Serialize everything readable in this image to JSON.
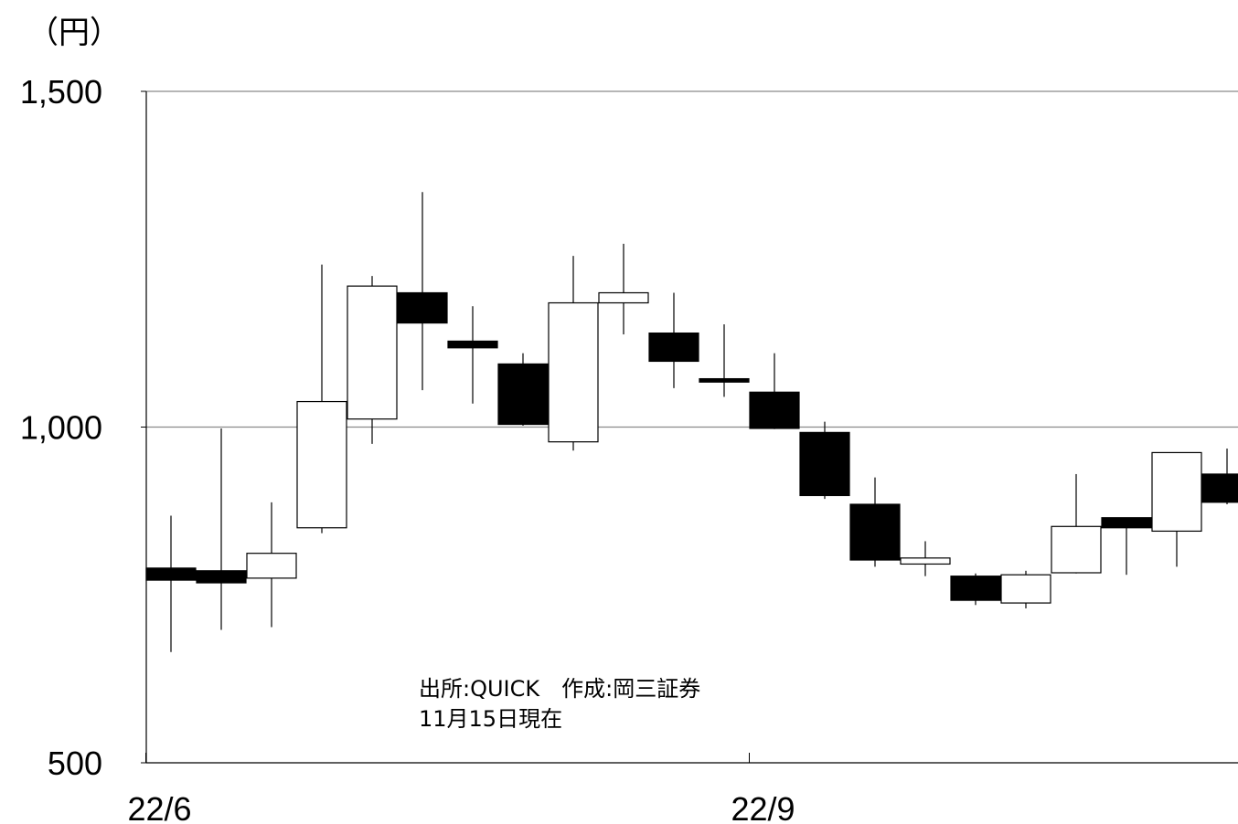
{
  "unit_label": "（円）",
  "source_note": "出所:QUICK　作成:岡三証券",
  "date_note": "11月15日現在",
  "chart_data": {
    "type": "candlestick",
    "ylim": [
      500,
      1500
    ],
    "yticks": [
      {
        "value": 1500,
        "label": "1,500"
      },
      {
        "value": 1000,
        "label": "1,000"
      },
      {
        "value": 500,
        "label": "500"
      }
    ],
    "xticks": [
      {
        "index": -0.5,
        "label": "22/6"
      },
      {
        "index": 11.5,
        "label": "22/9"
      }
    ],
    "gridlines": [
      1000,
      1500
    ],
    "candles": [
      {
        "open": 790,
        "close": 772,
        "high": 868,
        "low": 665
      },
      {
        "open": 786,
        "close": 768,
        "high": 998,
        "low": 698
      },
      {
        "open": 775,
        "close": 812,
        "high": 888,
        "low": 702
      },
      {
        "open": 850,
        "close": 1038,
        "high": 1242,
        "low": 842
      },
      {
        "open": 1012,
        "close": 1210,
        "high": 1225,
        "low": 975
      },
      {
        "open": 1200,
        "close": 1155,
        "high": 1350,
        "low": 1055
      },
      {
        "open": 1128,
        "close": 1118,
        "high": 1180,
        "low": 1035
      },
      {
        "open": 1094,
        "close": 1004,
        "high": 1110,
        "low": 1002
      },
      {
        "open": 978,
        "close": 1185,
        "high": 1255,
        "low": 965
      },
      {
        "open": 1185,
        "close": 1200,
        "high": 1273,
        "low": 1138
      },
      {
        "open": 1140,
        "close": 1098,
        "high": 1200,
        "low": 1058
      },
      {
        "open": 1072,
        "close": 1067,
        "high": 1153,
        "low": 1045
      },
      {
        "open": 1052,
        "close": 998,
        "high": 1110,
        "low": 997
      },
      {
        "open": 992,
        "close": 898,
        "high": 1008,
        "low": 893
      },
      {
        "open": 885,
        "close": 802,
        "high": 925,
        "low": 792
      },
      {
        "open": 796,
        "close": 805,
        "high": 830,
        "low": 778
      },
      {
        "open": 778,
        "close": 742,
        "high": 782,
        "low": 735
      },
      {
        "open": 738,
        "close": 780,
        "high": 786,
        "low": 730
      },
      {
        "open": 783,
        "close": 852,
        "high": 930,
        "low": 782
      },
      {
        "open": 865,
        "close": 850,
        "high": 865,
        "low": 780
      },
      {
        "open": 845,
        "close": 962,
        "high": 962,
        "low": 792
      },
      {
        "open": 930,
        "close": 888,
        "high": 968,
        "low": 885
      }
    ]
  }
}
